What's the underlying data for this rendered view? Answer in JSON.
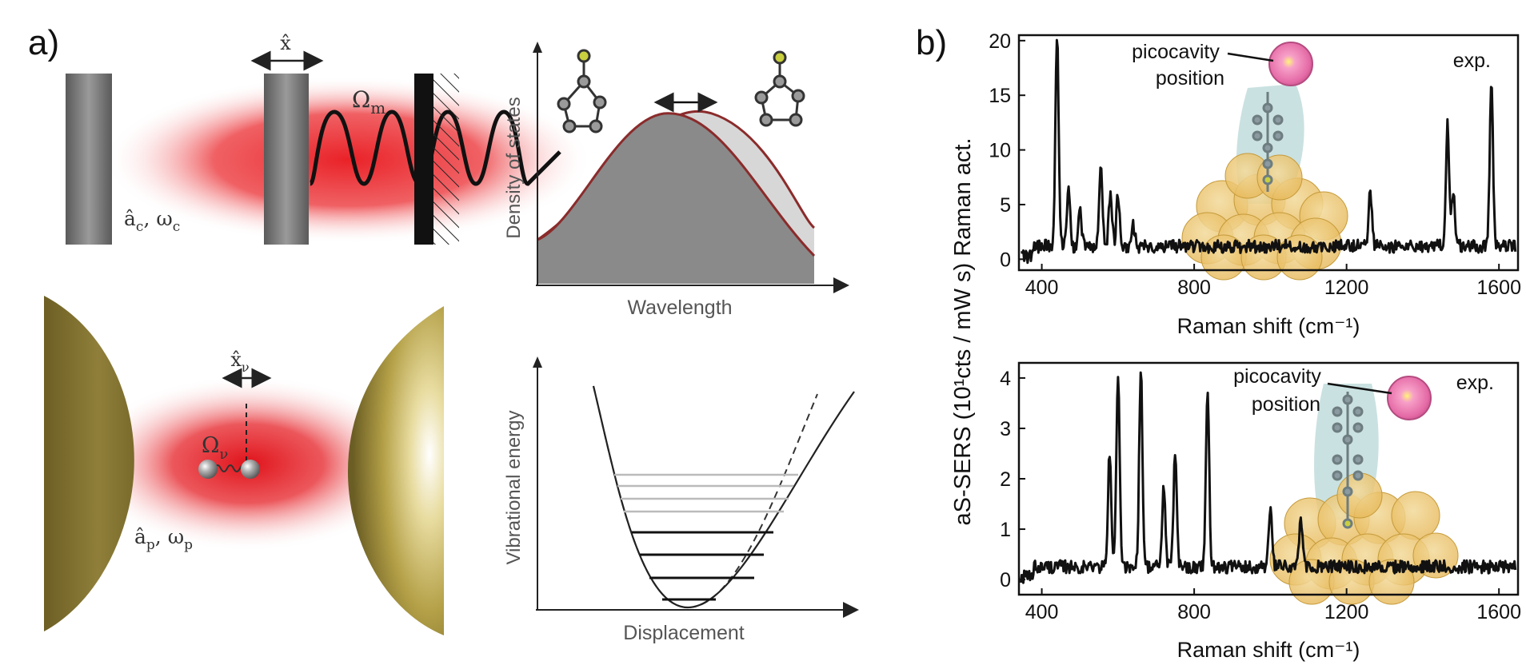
{
  "panel_a": {
    "label": "a)",
    "optomech": {
      "mode_label": "â",
      "mode_label_sub": "c",
      "mode_label_rest": ", ω",
      "mode_label_sub2": "c",
      "displacement": "x̂",
      "freq": "Ω",
      "freq_sub": "m"
    },
    "molecular": {
      "mode_label": "â",
      "mode_label_sub": "p",
      "mode_label_rest": ", ω",
      "mode_label_sub2": "p",
      "displacement": "x̂",
      "displacement_sub": "ν",
      "freq": "Ω",
      "freq_sub": "ν"
    },
    "dos_plot": {
      "ylabel": "Density of states",
      "xlabel": "Wavelength"
    },
    "vib_plot": {
      "ylabel": "Vibrational energy",
      "xlabel": "Displacement"
    }
  },
  "panel_b": {
    "label": "b)",
    "shared_ylabel": "aS-SERS (10¹cts / mW s) Raman act.",
    "annotation_top": "picocavity",
    "annotation_bottom": "position",
    "exp_label": "exp."
  },
  "chart_data": [
    {
      "type": "line",
      "title": "",
      "xlabel": "Raman shift (cm⁻¹)",
      "ylabel": "aS-SERS (10¹cts / mW s) Raman act.",
      "xlim": [
        340,
        1650
      ],
      "ylim": [
        -1,
        20.5
      ],
      "xticks": [
        400,
        800,
        1200,
        1600
      ],
      "yticks": [
        0,
        5,
        10,
        15,
        20
      ],
      "legend": "exp.",
      "series": [
        {
          "name": "exp.",
          "peaks_x": [
            440,
            470,
            500,
            555,
            580,
            600,
            640,
            1262,
            1465,
            1480,
            1580
          ],
          "peaks_y": [
            20.5,
            6.5,
            4.5,
            8.2,
            6.0,
            5.8,
            3.0,
            6.5,
            12.3,
            6.0,
            16.0
          ]
        }
      ]
    },
    {
      "type": "line",
      "title": "",
      "xlabel": "Raman shift (cm⁻¹)",
      "ylabel": "aS-SERS (10¹cts / mW s) Raman act.",
      "xlim": [
        340,
        1650
      ],
      "ylim": [
        -0.3,
        4.3
      ],
      "xticks": [
        400,
        800,
        1200,
        1600
      ],
      "yticks": [
        0,
        1,
        2,
        3,
        4
      ],
      "legend": "exp.",
      "series": [
        {
          "name": "exp.",
          "peaks_x": [
            578,
            600,
            660,
            720,
            750,
            835,
            1000,
            1080
          ],
          "peaks_y": [
            2.5,
            4.1,
            4.2,
            1.8,
            2.5,
            3.8,
            1.4,
            1.2
          ]
        }
      ]
    }
  ]
}
